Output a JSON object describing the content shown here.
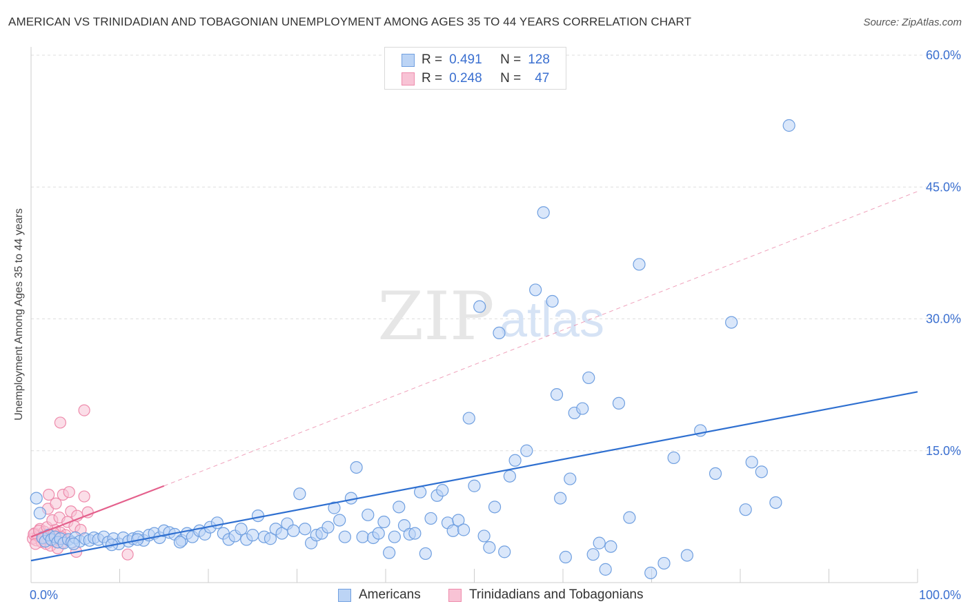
{
  "header": {
    "title": "AMERICAN VS TRINIDADIAN AND TOBAGONIAN UNEMPLOYMENT AMONG AGES 35 TO 44 YEARS CORRELATION CHART",
    "source": "Source: ZipAtlas.com"
  },
  "legend": {
    "r_label": "R =",
    "n_label": "N =",
    "series": [
      {
        "name": "Americans",
        "r": "0.491",
        "n": "128"
      },
      {
        "name": "Trinidadians and Tobagonians",
        "r": "0.248",
        "n": "47"
      }
    ]
  },
  "watermark": {
    "zip": "ZIP",
    "atlas": "atlas"
  },
  "colors": {
    "blue_fill": "#bcd4f5",
    "blue_stroke": "#6f9fe0",
    "blue_line": "#2e6fd0",
    "pink_fill": "#f8c3d5",
    "pink_stroke": "#ee8aab",
    "pink_line": "#e4608c",
    "axis_text": "#3a6fd0",
    "grid": "#dddddd"
  },
  "chart_data": {
    "type": "scatter",
    "title": "AMERICAN VS TRINIDADIAN AND TOBAGONIAN UNEMPLOYMENT AMONG AGES 35 TO 44 YEARS CORRELATION CHART",
    "xlabel": "",
    "ylabel": "Unemployment Among Ages 35 to 44 years",
    "xlim": [
      0,
      100
    ],
    "ylim": [
      0,
      60
    ],
    "x_tick_labels": [
      "0.0%",
      "100.0%"
    ],
    "y_ticks": [
      15,
      30,
      45,
      60
    ],
    "y_tick_labels": [
      "15.0%",
      "30.0%",
      "45.0%",
      "60.0%"
    ],
    "grid": true,
    "legend_position": "top-center",
    "series": [
      {
        "name": "Americans",
        "color": "#6f9fe0",
        "points": [
          [
            0.6,
            9.6
          ],
          [
            1.0,
            7.9
          ],
          [
            1.3,
            5.1
          ],
          [
            1.6,
            4.7
          ],
          [
            2.0,
            5.4
          ],
          [
            2.3,
            4.9
          ],
          [
            2.7,
            5.2
          ],
          [
            3.0,
            4.6
          ],
          [
            3.3,
            5.0
          ],
          [
            3.7,
            4.5
          ],
          [
            4.2,
            4.9
          ],
          [
            4.6,
            4.6
          ],
          [
            5.0,
            5.1
          ],
          [
            5.5,
            4.7
          ],
          [
            6.1,
            5.0
          ],
          [
            6.6,
            4.8
          ],
          [
            7.1,
            5.1
          ],
          [
            7.6,
            4.9
          ],
          [
            8.2,
            5.2
          ],
          [
            8.7,
            4.6
          ],
          [
            9.3,
            5.0
          ],
          [
            9.9,
            4.4
          ],
          [
            10.4,
            5.1
          ],
          [
            11.0,
            4.7
          ],
          [
            11.5,
            5.0
          ],
          [
            12.1,
            5.2
          ],
          [
            12.7,
            4.8
          ],
          [
            13.3,
            5.4
          ],
          [
            13.9,
            5.6
          ],
          [
            14.5,
            5.1
          ],
          [
            15.0,
            5.9
          ],
          [
            15.6,
            5.7
          ],
          [
            16.2,
            5.5
          ],
          [
            17.0,
            4.8
          ],
          [
            17.6,
            5.6
          ],
          [
            18.2,
            5.2
          ],
          [
            19.0,
            5.9
          ],
          [
            19.6,
            5.5
          ],
          [
            20.2,
            6.3
          ],
          [
            21.0,
            6.8
          ],
          [
            21.7,
            5.6
          ],
          [
            22.3,
            4.9
          ],
          [
            23.0,
            5.3
          ],
          [
            23.7,
            6.1
          ],
          [
            24.3,
            4.9
          ],
          [
            25.0,
            5.4
          ],
          [
            25.6,
            7.6
          ],
          [
            26.3,
            5.2
          ],
          [
            27.0,
            5.0
          ],
          [
            27.6,
            6.1
          ],
          [
            28.3,
            5.6
          ],
          [
            28.9,
            6.7
          ],
          [
            29.6,
            5.9
          ],
          [
            30.3,
            10.1
          ],
          [
            30.9,
            6.1
          ],
          [
            31.6,
            4.5
          ],
          [
            32.2,
            5.4
          ],
          [
            32.8,
            5.6
          ],
          [
            33.5,
            6.3
          ],
          [
            34.2,
            8.5
          ],
          [
            34.8,
            7.1
          ],
          [
            35.4,
            5.2
          ],
          [
            36.1,
            9.6
          ],
          [
            36.7,
            13.1
          ],
          [
            37.4,
            5.2
          ],
          [
            38.0,
            7.7
          ],
          [
            38.6,
            5.1
          ],
          [
            39.2,
            5.6
          ],
          [
            39.8,
            6.9
          ],
          [
            40.4,
            3.4
          ],
          [
            41.0,
            5.2
          ],
          [
            41.5,
            8.6
          ],
          [
            42.1,
            6.5
          ],
          [
            42.7,
            5.5
          ],
          [
            43.3,
            5.6
          ],
          [
            43.9,
            10.3
          ],
          [
            44.5,
            3.3
          ],
          [
            45.1,
            7.3
          ],
          [
            45.8,
            9.9
          ],
          [
            46.4,
            10.5
          ],
          [
            47.0,
            6.8
          ],
          [
            47.6,
            5.9
          ],
          [
            48.2,
            7.1
          ],
          [
            48.8,
            6.0
          ],
          [
            49.4,
            18.7
          ],
          [
            50.0,
            11.0
          ],
          [
            50.6,
            31.4
          ],
          [
            51.1,
            5.3
          ],
          [
            51.7,
            4.0
          ],
          [
            52.3,
            8.6
          ],
          [
            52.8,
            28.4
          ],
          [
            53.4,
            3.5
          ],
          [
            54.0,
            12.1
          ],
          [
            54.6,
            13.9
          ],
          [
            55.9,
            15.0
          ],
          [
            56.9,
            33.3
          ],
          [
            57.8,
            42.1
          ],
          [
            58.8,
            32.0
          ],
          [
            59.3,
            21.4
          ],
          [
            59.7,
            9.6
          ],
          [
            60.3,
            2.9
          ],
          [
            60.8,
            11.8
          ],
          [
            61.3,
            19.3
          ],
          [
            62.2,
            19.8
          ],
          [
            62.9,
            23.3
          ],
          [
            63.4,
            3.2
          ],
          [
            64.1,
            4.5
          ],
          [
            64.8,
            1.5
          ],
          [
            65.4,
            4.1
          ],
          [
            66.3,
            20.4
          ],
          [
            67.5,
            7.4
          ],
          [
            68.6,
            36.2
          ],
          [
            69.9,
            1.1
          ],
          [
            71.4,
            2.2
          ],
          [
            72.5,
            14.2
          ],
          [
            74.0,
            3.1
          ],
          [
            75.5,
            17.3
          ],
          [
            77.2,
            12.4
          ],
          [
            79.0,
            29.6
          ],
          [
            80.6,
            8.3
          ],
          [
            81.3,
            13.7
          ],
          [
            82.4,
            12.6
          ],
          [
            84.0,
            9.1
          ],
          [
            85.5,
            52.0
          ],
          [
            4.8,
            4.4
          ],
          [
            9.1,
            4.3
          ],
          [
            12.0,
            4.9
          ],
          [
            16.8,
            4.6
          ]
        ],
        "trend": {
          "x0": 0,
          "y0": 2.5,
          "x1": 100,
          "y1": 21.7
        }
      },
      {
        "name": "Trinidadians and Tobagonians",
        "color": "#ee8aab",
        "points": [
          [
            0.2,
            5.0
          ],
          [
            0.4,
            5.6
          ],
          [
            0.6,
            4.8
          ],
          [
            0.8,
            5.3
          ],
          [
            1.0,
            6.1
          ],
          [
            1.2,
            4.6
          ],
          [
            1.4,
            5.2
          ],
          [
            1.5,
            5.8
          ],
          [
            1.7,
            4.4
          ],
          [
            1.9,
            5.0
          ],
          [
            2.1,
            5.5
          ],
          [
            2.3,
            5.1
          ],
          [
            2.5,
            4.7
          ],
          [
            2.7,
            6.0
          ],
          [
            2.9,
            5.3
          ],
          [
            3.1,
            4.9
          ],
          [
            3.3,
            5.7
          ],
          [
            3.5,
            4.5
          ],
          [
            3.7,
            5.0
          ],
          [
            3.9,
            5.4
          ],
          [
            0.3,
            5.5
          ],
          [
            0.5,
            4.4
          ],
          [
            0.9,
            5.9
          ],
          [
            1.3,
            5.0
          ],
          [
            1.8,
            6.3
          ],
          [
            2.2,
            4.2
          ],
          [
            2.6,
            5.6
          ],
          [
            3.0,
            3.9
          ],
          [
            3.4,
            5.2
          ],
          [
            2.4,
            7.1
          ],
          [
            1.9,
            8.4
          ],
          [
            2.8,
            9.0
          ],
          [
            3.2,
            7.4
          ],
          [
            3.6,
            10.0
          ],
          [
            4.1,
            6.9
          ],
          [
            4.5,
            8.1
          ],
          [
            4.9,
            6.4
          ],
          [
            5.2,
            7.6
          ],
          [
            5.6,
            6.0
          ],
          [
            6.0,
            9.8
          ],
          [
            6.4,
            8.0
          ],
          [
            6.0,
            19.6
          ],
          [
            3.3,
            18.2
          ],
          [
            5.1,
            3.5
          ],
          [
            10.9,
            3.2
          ],
          [
            2.0,
            10.0
          ],
          [
            4.3,
            10.3
          ]
        ],
        "trend": {
          "x0": 0,
          "y0": 5.2,
          "x1": 15,
          "y1": 11.0
        },
        "trend_dashed": {
          "x0": 15,
          "y0": 11.0,
          "x1": 100,
          "y1": 44.5
        }
      }
    ]
  }
}
